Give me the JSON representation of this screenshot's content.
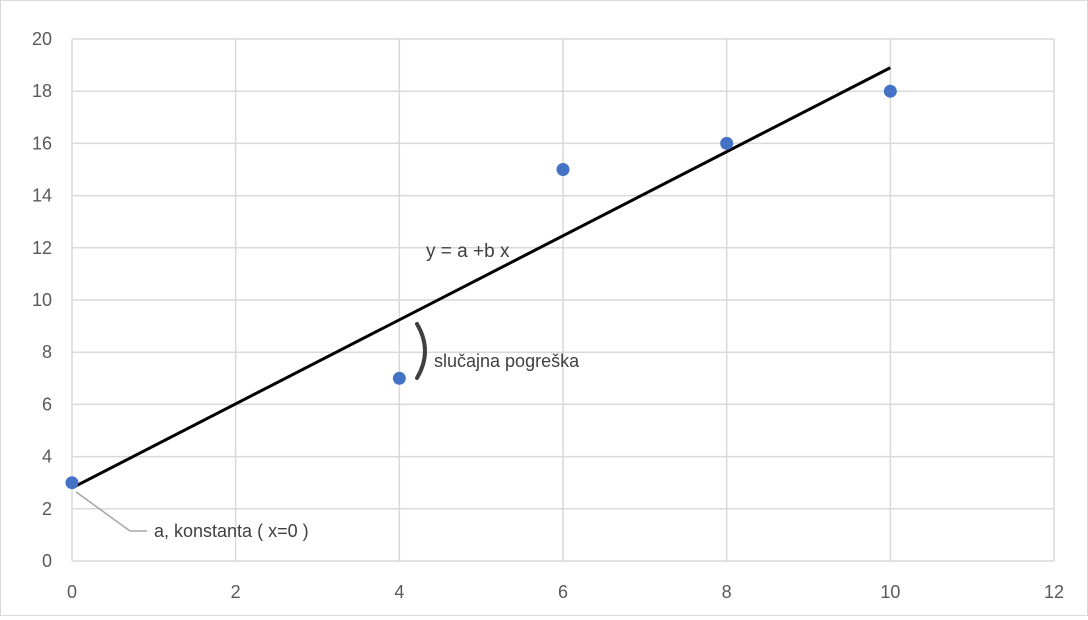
{
  "chart_data": {
    "type": "scatter",
    "title": "",
    "xlabel": "",
    "ylabel": "",
    "xlim": [
      0,
      12
    ],
    "ylim": [
      0,
      20
    ],
    "x_ticks": [
      0,
      2,
      4,
      6,
      8,
      10,
      12
    ],
    "y_ticks": [
      0,
      2,
      4,
      6,
      8,
      10,
      12,
      14,
      16,
      18,
      20
    ],
    "grid": true,
    "legend": "none",
    "series": [
      {
        "points": [
          {
            "x": 0,
            "y": 3
          },
          {
            "x": 4,
            "y": 7
          },
          {
            "x": 6,
            "y": 15
          },
          {
            "x": 8,
            "y": 16
          },
          {
            "x": 10,
            "y": 18
          }
        ],
        "color": "#4472c4"
      }
    ],
    "trendline": {
      "x_start": 0,
      "y_start": 2.8,
      "x_end": 10,
      "y_end": 18.9,
      "color": "#000000"
    },
    "annotations": {
      "equation": "y = a +b x",
      "error_label": "slučajna pogreška",
      "intercept_label": "a, konstanta ( x=0 )"
    },
    "colors": {
      "grid": "#d9d9d9",
      "tick_text": "#595959",
      "point": "#4472c4",
      "line": "#000000",
      "annotation_text": "#404040"
    }
  }
}
